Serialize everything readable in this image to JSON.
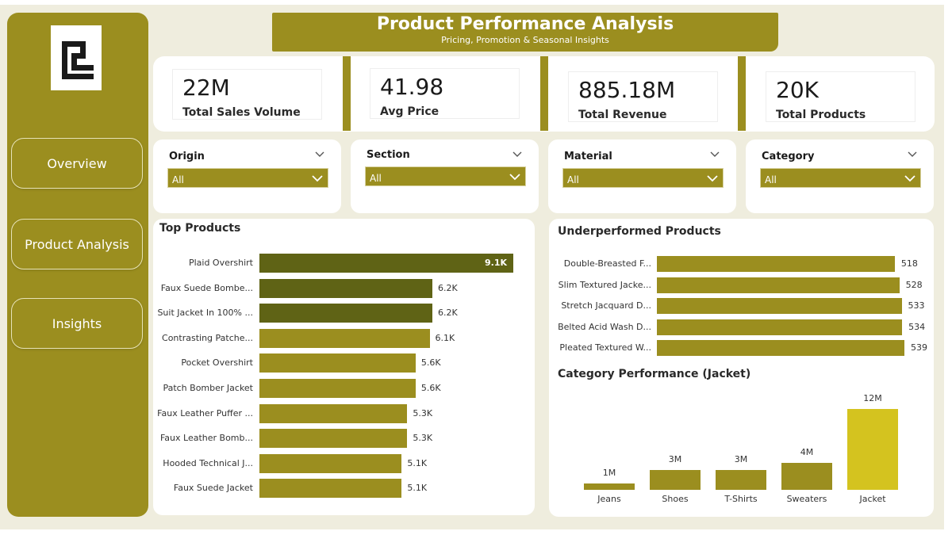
{
  "banner": {
    "title": "Product Performance Analysis",
    "subtitle": "Pricing, Promotion & Seasonal Insights"
  },
  "nav": [
    {
      "label": "Overview"
    },
    {
      "label": "Product Analysis"
    },
    {
      "label": "Insights"
    }
  ],
  "kpis": [
    {
      "value": "22M",
      "label": "Total Sales Volume"
    },
    {
      "value": "41.98",
      "label": "Avg Price"
    },
    {
      "value": "885.18M",
      "label": "Total Revenue"
    },
    {
      "value": "20K",
      "label": "Total Products"
    }
  ],
  "slicers": [
    {
      "label": "Origin",
      "value": "All"
    },
    {
      "label": "Section",
      "value": "All"
    },
    {
      "label": "Material",
      "value": "All"
    },
    {
      "label": "Category",
      "value": "All"
    }
  ],
  "colors": {
    "accent": "#9b8e1f",
    "dark_olive": "#5f6315",
    "highlight_yellow": "#d4c31f",
    "background": "#efedde"
  },
  "chart_data": [
    {
      "type": "bar",
      "orientation": "horizontal",
      "title": "Top Products",
      "categories": [
        "Plaid Overshirt",
        "Faux Suede Bombe...",
        "Suit Jacket In 100% ...",
        "Contrasting Patche...",
        "Pocket Overshirt",
        "Patch Bomber Jacket",
        "Faux Leather Puffer ...",
        "Faux Leather Bomb...",
        "Hooded Technical J...",
        "Faux Suede Jacket"
      ],
      "values": [
        9100,
        6200,
        6200,
        6100,
        5600,
        5600,
        5300,
        5300,
        5100,
        5100
      ],
      "value_labels": [
        "9.1K",
        "6.2K",
        "6.2K",
        "6.1K",
        "5.6K",
        "5.6K",
        "5.3K",
        "5.3K",
        "5.1K",
        "5.1K"
      ],
      "colors": [
        "#5f6315",
        "#5f6315",
        "#5f6315",
        "#9b8e1f",
        "#9b8e1f",
        "#9b8e1f",
        "#9b8e1f",
        "#9b8e1f",
        "#9b8e1f",
        "#9b8e1f"
      ],
      "xlim": [
        0,
        9100
      ]
    },
    {
      "type": "bar",
      "orientation": "horizontal",
      "title": "Underperformed Products",
      "categories": [
        "Double-Breasted F...",
        "Slim Textured Jacke...",
        "Stretch Jacquard D...",
        "Belted Acid Wash D...",
        "Pleated Textured W..."
      ],
      "values": [
        518,
        528,
        533,
        534,
        539
      ],
      "value_labels": [
        "518",
        "528",
        "533",
        "534",
        "539"
      ],
      "xlim": [
        0,
        539
      ]
    },
    {
      "type": "bar",
      "orientation": "vertical",
      "title": "Category Performance (Jacket)",
      "categories": [
        "Jeans",
        "Shoes",
        "T-Shirts",
        "Sweaters",
        "Jacket"
      ],
      "values": [
        1,
        3,
        3,
        4,
        12
      ],
      "value_labels": [
        "1M",
        "3M",
        "3M",
        "4M",
        "12M"
      ],
      "highlight": "Jacket",
      "ylim": [
        0,
        12
      ]
    }
  ]
}
